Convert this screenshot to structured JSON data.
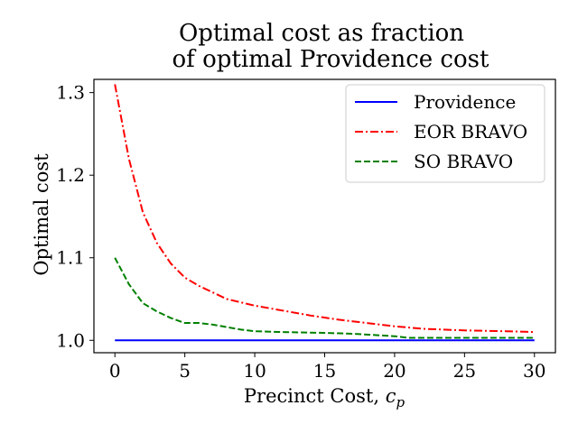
{
  "chart_data": {
    "type": "line",
    "title_line1": "Optimal cost as fraction",
    "title_line2": "of optimal Providence cost",
    "xlabel": "Precinct Cost, ",
    "xlabel_var": "c",
    "xlabel_sub": "p",
    "ylabel": "Optimal cost",
    "xlim": [
      -1.5,
      31.5
    ],
    "ylim": [
      0.985,
      1.316
    ],
    "xticks": [
      0,
      5,
      10,
      15,
      20,
      25,
      30
    ],
    "xtick_labels": [
      "0",
      "5",
      "10",
      "15",
      "20",
      "25",
      "30"
    ],
    "yticks": [
      1.0,
      1.1,
      1.2,
      1.3
    ],
    "ytick_labels": [
      "1.0",
      "1.1",
      "1.2",
      "1.3"
    ],
    "grid": false,
    "legend_position": "top-right",
    "series": [
      {
        "name": "Providence",
        "color": "#0000ff",
        "dash": "solid",
        "x": [
          0,
          30
        ],
        "y": [
          1.0,
          1.0
        ]
      },
      {
        "name": "EOR BRAVO",
        "color": "#ff0000",
        "dash": "dashdot",
        "x": [
          0,
          1,
          2,
          3,
          4,
          5,
          6,
          8,
          10,
          12,
          14,
          16,
          18,
          20,
          22,
          25,
          28,
          30
        ],
        "y": [
          1.31,
          1.22,
          1.155,
          1.118,
          1.093,
          1.076,
          1.066,
          1.05,
          1.042,
          1.036,
          1.03,
          1.025,
          1.021,
          1.017,
          1.014,
          1.012,
          1.011,
          1.01
        ]
      },
      {
        "name": "SO BRAVO",
        "color": "#008000",
        "dash": "dashed",
        "x": [
          0,
          1,
          2,
          3,
          4,
          5,
          6,
          7,
          8,
          9,
          10,
          12,
          15,
          17,
          20,
          21,
          25,
          30
        ],
        "y": [
          1.1,
          1.068,
          1.045,
          1.035,
          1.027,
          1.021,
          1.021,
          1.019,
          1.016,
          1.013,
          1.011,
          1.01,
          1.009,
          1.008,
          1.005,
          1.003,
          1.003,
          1.003
        ]
      }
    ]
  }
}
